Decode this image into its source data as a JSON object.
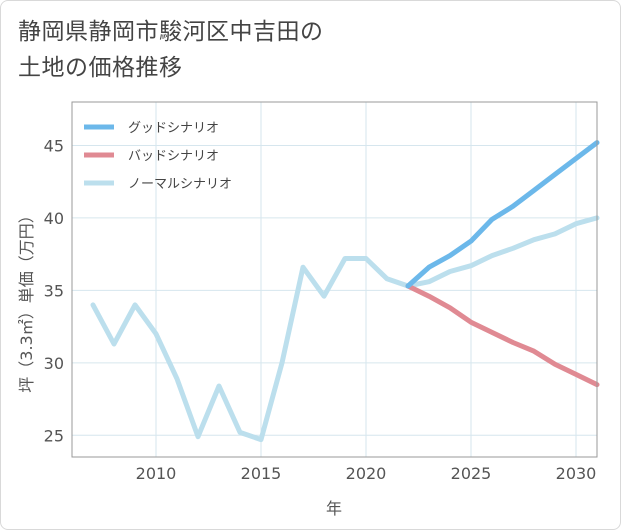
{
  "title_line1": "静岡県静岡市駿河区中吉田の",
  "title_line2": "土地の価格推移",
  "chart_data": {
    "type": "line",
    "title": "静岡県静岡市駿河区中吉田の土地の価格推移",
    "xlabel": "年",
    "ylabel": "坪（3.3㎡）単価（万円）",
    "xlim": [
      2006,
      2031
    ],
    "ylim": [
      23.5,
      48
    ],
    "xticks": [
      2010,
      2015,
      2020,
      2025,
      2030
    ],
    "yticks": [
      25,
      30,
      35,
      40,
      45
    ],
    "grid": true,
    "legend_position": "top-left",
    "series": [
      {
        "name": "グッドシナリオ",
        "color": "#6cb8ea",
        "x": [
          2022,
          2023,
          2024,
          2025,
          2026,
          2027,
          2028,
          2029,
          2030,
          2031
        ],
        "y": [
          35.3,
          36.6,
          37.4,
          38.4,
          39.9,
          40.8,
          41.9,
          43.0,
          44.1,
          45.2
        ]
      },
      {
        "name": "バッドシナリオ",
        "color": "#e08a93",
        "x": [
          2022,
          2023,
          2024,
          2025,
          2026,
          2027,
          2028,
          2029,
          2030,
          2031
        ],
        "y": [
          35.3,
          34.6,
          33.8,
          32.8,
          32.1,
          31.4,
          30.8,
          29.9,
          29.2,
          28.5
        ]
      },
      {
        "name": "ノーマルシナリオ",
        "color": "#bcdfed",
        "x": [
          2007,
          2008,
          2009,
          2010,
          2011,
          2012,
          2013,
          2014,
          2015,
          2016,
          2017,
          2018,
          2019,
          2020,
          2021,
          2022,
          2023,
          2024,
          2025,
          2026,
          2027,
          2028,
          2029,
          2030,
          2031
        ],
        "y": [
          34.0,
          31.3,
          34.0,
          32.0,
          28.9,
          24.9,
          28.4,
          25.2,
          24.7,
          30.0,
          36.6,
          34.6,
          37.2,
          37.2,
          35.8,
          35.3,
          35.6,
          36.3,
          36.7,
          37.4,
          37.9,
          38.5,
          38.9,
          39.6,
          40.0
        ]
      }
    ]
  }
}
